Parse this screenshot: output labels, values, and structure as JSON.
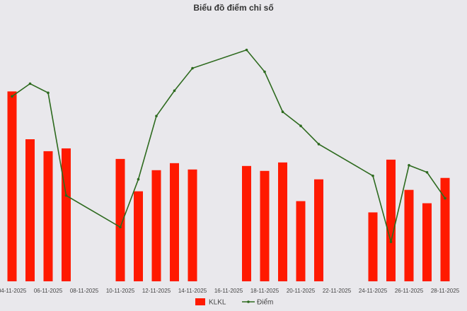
{
  "chart_data": {
    "type": "bar-line",
    "title": "Biểu đồ điểm chỉ số",
    "categories": [
      "04-11-2025",
      null,
      "06-11-2025",
      null,
      "08-11-2025",
      null,
      "10-11-2025",
      null,
      "12-11-2025",
      null,
      "14-11-2025",
      null,
      "16-11-2025",
      null,
      "18-11-2025",
      null,
      "20-11-2025",
      null,
      "22-11-2025",
      null,
      "24-11-2025",
      null,
      "26-11-2025",
      null,
      "28-11-2025"
    ],
    "series": [
      {
        "name": "KLKL",
        "type": "bar",
        "color": "#ff1a00",
        "values": [
          270,
          202,
          185,
          189,
          null,
          null,
          174,
          128,
          158,
          168,
          159,
          null,
          null,
          164,
          157,
          169,
          114,
          145,
          null,
          null,
          98,
          173,
          130,
          111,
          147
        ]
      },
      {
        "name": "Điểm",
        "type": "line",
        "color": "#2d6a1e",
        "values": [
          263,
          281,
          268,
          122,
          null,
          null,
          77,
          145,
          235,
          271,
          303,
          null,
          null,
          329,
          298,
          241,
          221,
          195,
          null,
          null,
          150,
          56,
          165,
          155,
          118
        ]
      }
    ],
    "ylim": [
      0,
      400
    ]
  }
}
